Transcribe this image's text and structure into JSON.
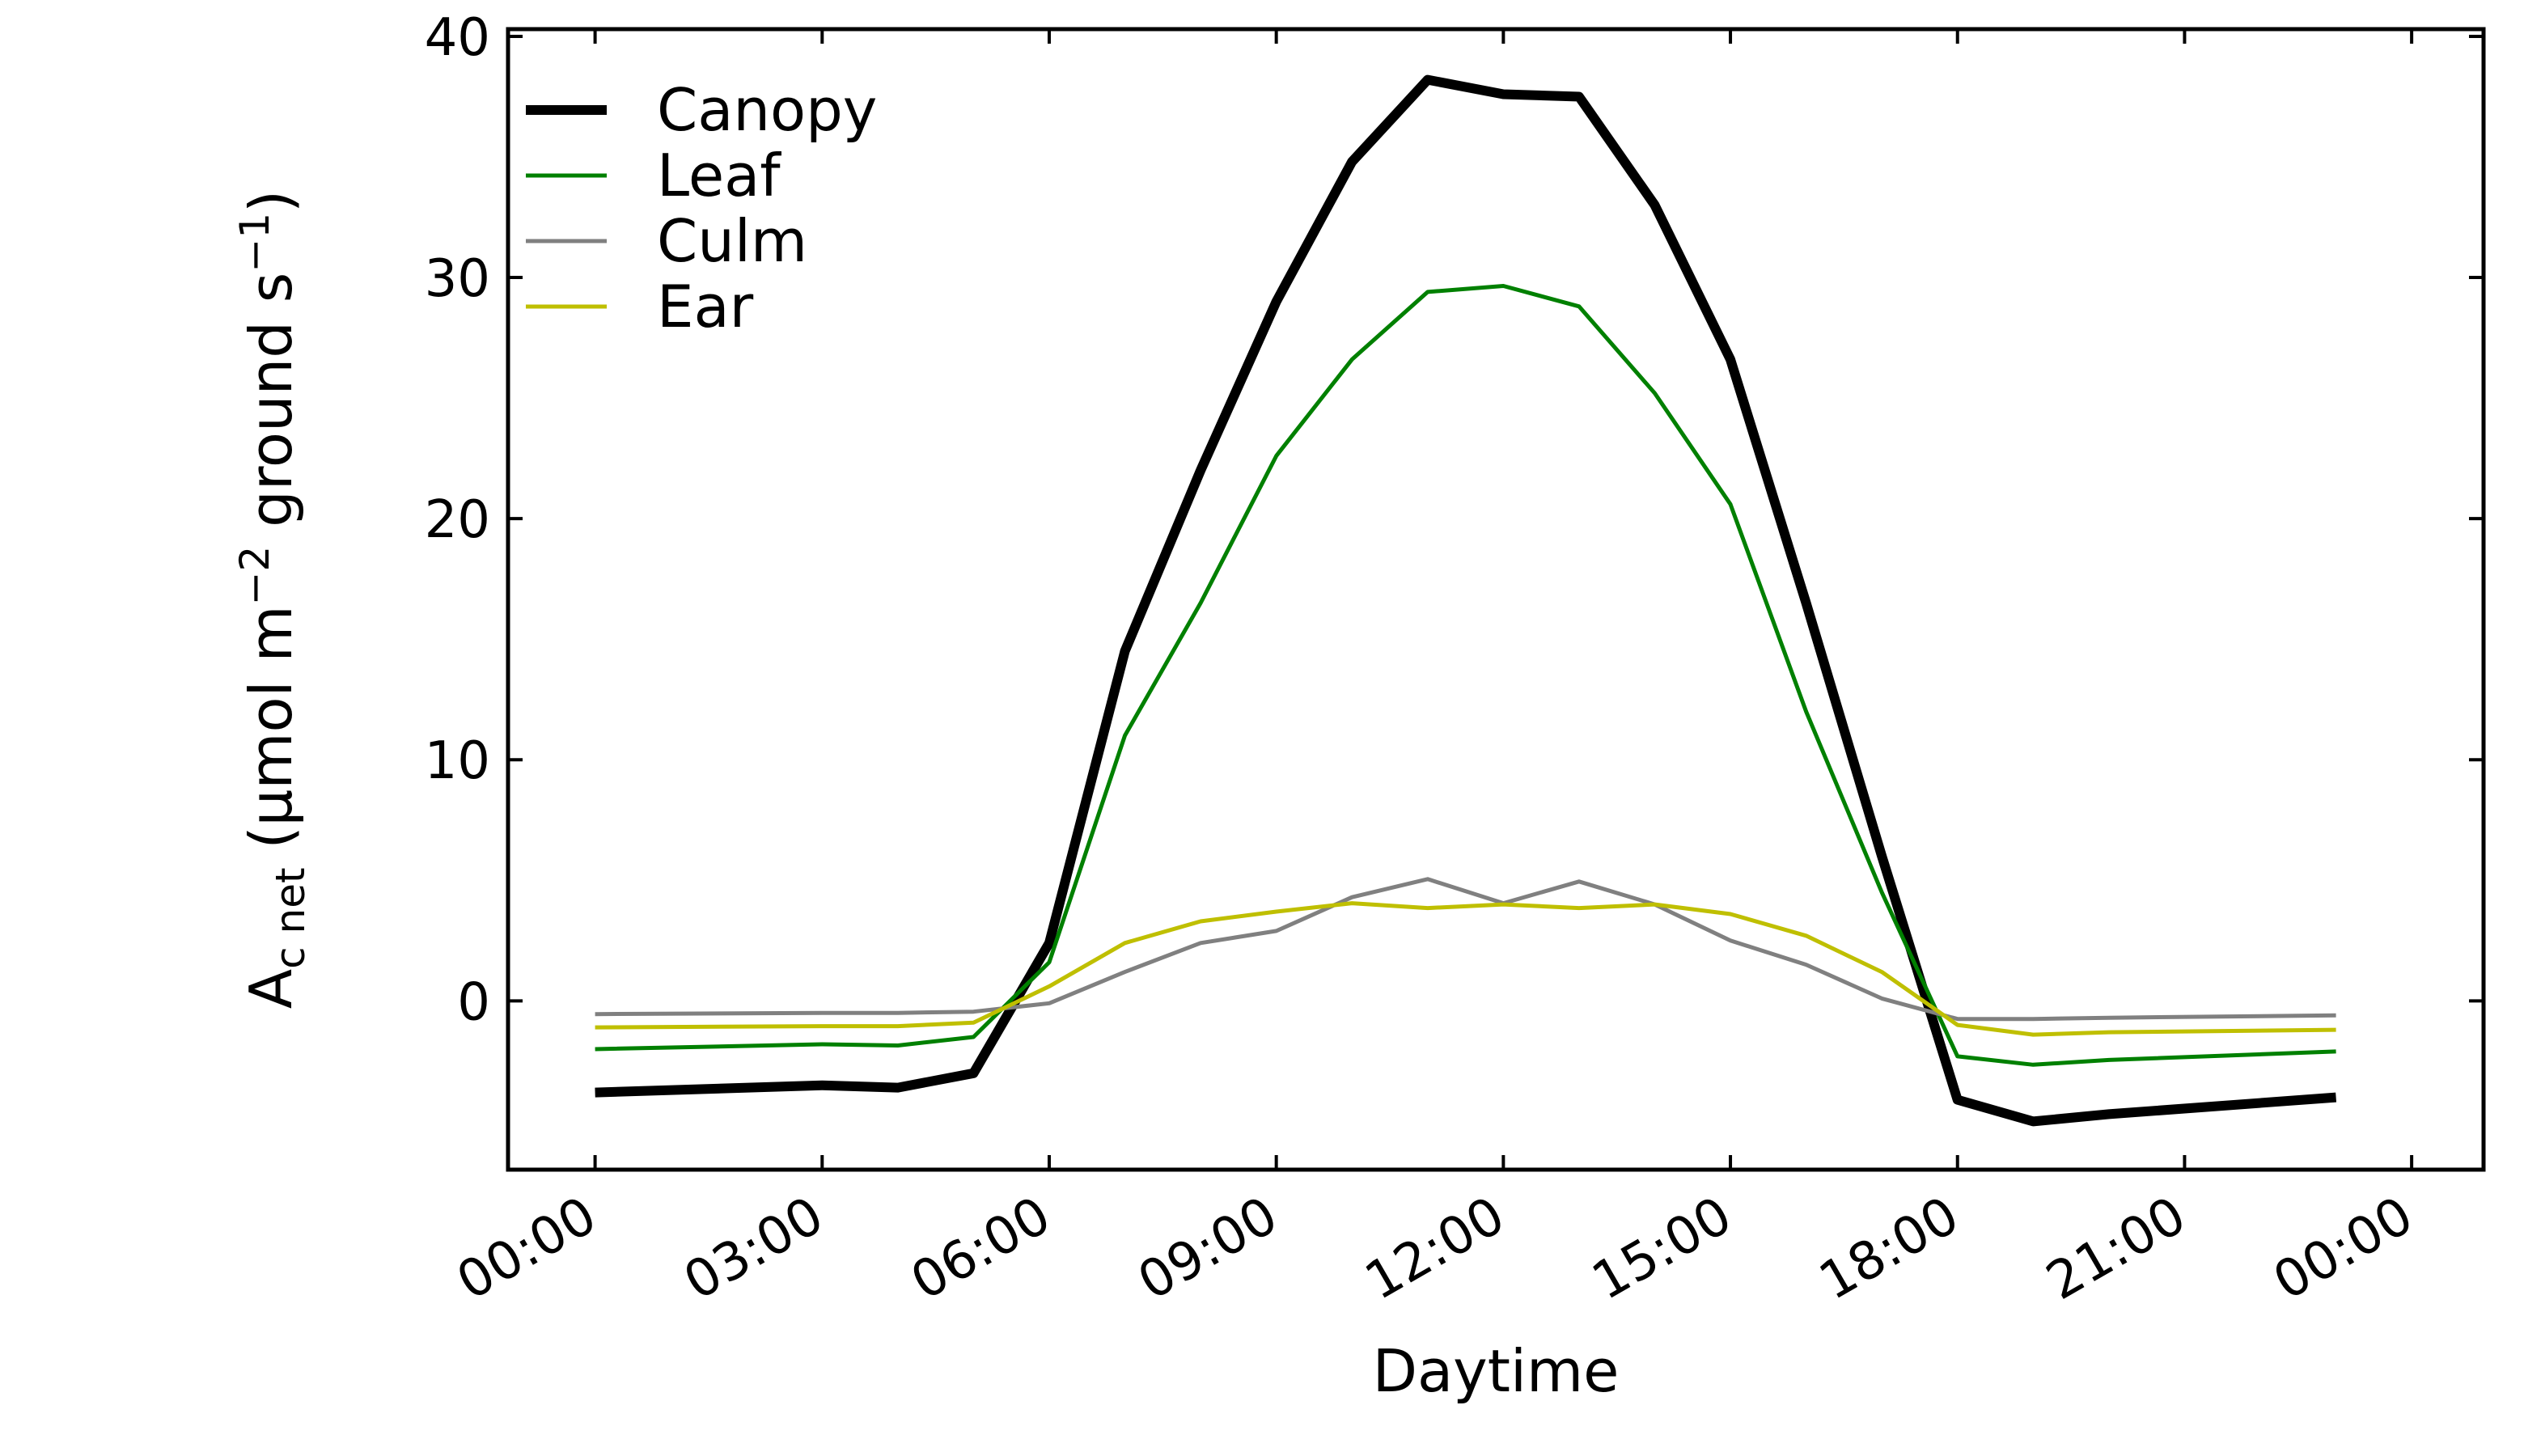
{
  "chart_data": {
    "type": "line",
    "title": "",
    "xlabel": "Daytime",
    "ylabel": {
      "main": "A",
      "sub": "c net",
      "unit_pre": " (µmol m",
      "sup1": "−2",
      "unit_mid": " ground s",
      "sup2": "−1",
      "unit_post": ")"
    },
    "x_tick_labels": [
      "00:00",
      "03:00",
      "06:00",
      "09:00",
      "12:00",
      "15:00",
      "18:00",
      "21:00",
      "00:00"
    ],
    "x_ticks_hours": [
      0,
      3,
      6,
      9,
      12,
      15,
      18,
      21,
      24
    ],
    "xlim_hours": [
      -1.15,
      24.95
    ],
    "y_ticks": [
      0,
      10,
      20,
      30,
      40
    ],
    "ylim": [
      -7,
      40.3
    ],
    "grid": false,
    "legend_position": "top-left",
    "x_hours": [
      0,
      3,
      4,
      5,
      6,
      7,
      8,
      9,
      10,
      11,
      12,
      13,
      14,
      15,
      16,
      17,
      18,
      19,
      20,
      23
    ],
    "series": [
      {
        "name": "Canopy",
        "color": "#000000",
        "values": [
          -3.8,
          -3.5,
          -3.6,
          -3.0,
          2.4,
          14.5,
          22.0,
          29.0,
          34.8,
          38.2,
          37.6,
          37.5,
          33.0,
          26.6,
          16.5,
          6.0,
          -4.1,
          -5.0,
          -4.7,
          -4.0
        ]
      },
      {
        "name": "Leaf",
        "color": "#008000",
        "values": [
          -2.0,
          -1.8,
          -1.85,
          -1.5,
          1.6,
          11.0,
          16.5,
          22.6,
          26.6,
          29.4,
          29.65,
          28.8,
          25.2,
          20.6,
          12.0,
          4.5,
          -2.3,
          -2.65,
          -2.45,
          -2.1
        ]
      },
      {
        "name": "Culm",
        "color": "#808080",
        "values": [
          -0.55,
          -0.5,
          -0.5,
          -0.45,
          -0.1,
          1.2,
          2.4,
          2.9,
          4.3,
          5.05,
          4.05,
          4.95,
          4.0,
          2.5,
          1.5,
          0.1,
          -0.75,
          -0.75,
          -0.7,
          -0.6
        ]
      },
      {
        "name": "Ear",
        "color": "#bfbf00",
        "values": [
          -1.1,
          -1.05,
          -1.05,
          -0.9,
          0.6,
          2.4,
          3.3,
          3.7,
          4.05,
          3.85,
          4.0,
          3.85,
          4.0,
          3.6,
          2.7,
          1.2,
          -1.0,
          -1.4,
          -1.3,
          -1.2
        ]
      }
    ]
  }
}
